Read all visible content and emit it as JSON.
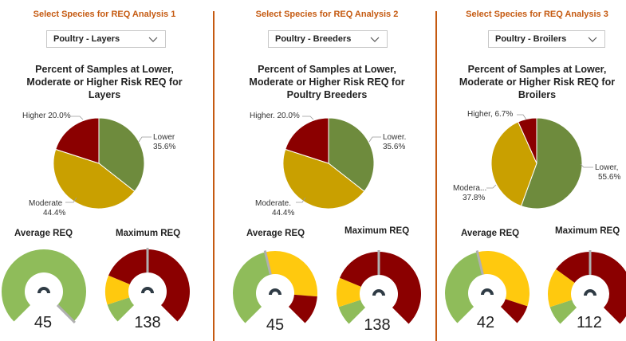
{
  "panels": [
    {
      "select_title": "Select Species for REQ Analysis 1",
      "dropdown": "Poultry - Layers",
      "pie_title": [
        "Percent of Samples at Lower,",
        "Moderate or Higher Risk REQ for",
        "Layers"
      ],
      "labels": {
        "higher": "Higher 20.0%",
        "lower_1": "Lower",
        "lower_2": "35.6%",
        "moderate_1": "Moderate",
        "moderate_2": "44.4%"
      },
      "average": {
        "title": "Average REQ",
        "value": "45"
      },
      "maximum": {
        "title": "Maximum REQ",
        "value": "138"
      }
    },
    {
      "select_title": "Select Species for REQ Analysis 2",
      "dropdown": "Poultry - Breeders",
      "pie_title": [
        "Percent of Samples at Lower,",
        "Moderate or Higher Risk REQ for",
        "Poultry Breeders"
      ],
      "labels": {
        "higher": "Higher. 20.0%",
        "lower_1": "Lower.",
        "lower_2": "35.6%",
        "moderate_1": "Moderate.",
        "moderate_2": "44.4%"
      },
      "average": {
        "title": "Average REQ",
        "value": "45"
      },
      "maximum": {
        "title": "Maximum REQ",
        "value": "138"
      }
    },
    {
      "select_title": "Select Species for REQ Analysis 3",
      "dropdown": "Poultry - Broilers",
      "pie_title": [
        "Percent of Samples at Lower,",
        "Moderate or Higher Risk REQ for",
        "Broilers"
      ],
      "labels": {
        "higher": "Higher, 6.7%",
        "lower_1": "Lower,",
        "lower_2": "55.6%",
        "moderate_1": "Modera...",
        "moderate_2": "37.8%"
      },
      "average": {
        "title": "Average REQ",
        "value": "42"
      },
      "maximum": {
        "title": "Maximum REQ",
        "value": "112"
      }
    }
  ],
  "colors": {
    "lower": "#6e8b3d",
    "moderate": "#c9a000",
    "higher": "#8b0000",
    "gauge_green": "#8fbc5a",
    "gauge_yellow": "#ffc90e",
    "gauge_red": "#8b0000",
    "accent": "#c55a11"
  },
  "chart_data": [
    {
      "type": "pie",
      "title": "Percent of Samples at Lower, Moderate or Higher Risk REQ for Layers",
      "categories": [
        "Lower",
        "Moderate",
        "Higher"
      ],
      "values": [
        35.6,
        44.4,
        20.0
      ]
    },
    {
      "type": "pie",
      "title": "Percent of Samples at Lower, Moderate or Higher Risk REQ for Poultry Breeders",
      "categories": [
        "Lower",
        "Moderate",
        "Higher"
      ],
      "values": [
        35.6,
        44.4,
        20.0
      ]
    },
    {
      "type": "pie",
      "title": "Percent of Samples at Lower, Moderate or Higher Risk REQ for Broilers",
      "categories": [
        "Lower",
        "Moderate",
        "Higher"
      ],
      "values": [
        55.6,
        37.8,
        6.7
      ]
    },
    {
      "type": "gauge",
      "title": "Average REQ",
      "value": 45,
      "bands": [
        [
          "green",
          0.0,
          1.0
        ]
      ],
      "needle_fraction": 1.0
    },
    {
      "type": "gauge",
      "title": "Maximum REQ",
      "value": 138,
      "bands": [
        [
          "green",
          0.0,
          0.1
        ],
        [
          "yellow",
          0.1,
          0.25
        ],
        [
          "red",
          0.25,
          1.0
        ]
      ],
      "needle_fraction": 0.5
    },
    {
      "type": "gauge",
      "title": "Average REQ",
      "value": 45,
      "bands": [
        [
          "green",
          0.0,
          0.45
        ],
        [
          "yellow",
          0.45,
          0.85
        ],
        [
          "red",
          0.85,
          1.0
        ]
      ],
      "needle_fraction": 0.45
    },
    {
      "type": "gauge",
      "title": "Maximum REQ",
      "value": 138,
      "bands": [
        [
          "green",
          0.0,
          0.1
        ],
        [
          "yellow",
          0.1,
          0.25
        ],
        [
          "red",
          0.25,
          1.0
        ]
      ],
      "needle_fraction": 0.5
    },
    {
      "type": "gauge",
      "title": "Average REQ",
      "value": 42,
      "bands": [
        [
          "green",
          0.0,
          0.45
        ],
        [
          "yellow",
          0.45,
          0.9
        ],
        [
          "red",
          0.9,
          1.0
        ]
      ],
      "needle_fraction": 0.45
    },
    {
      "type": "gauge",
      "title": "Maximum REQ",
      "value": 112,
      "bands": [
        [
          "green",
          0.0,
          0.1
        ],
        [
          "yellow",
          0.1,
          0.3
        ],
        [
          "red",
          0.3,
          1.0
        ]
      ],
      "needle_fraction": 0.5
    }
  ]
}
